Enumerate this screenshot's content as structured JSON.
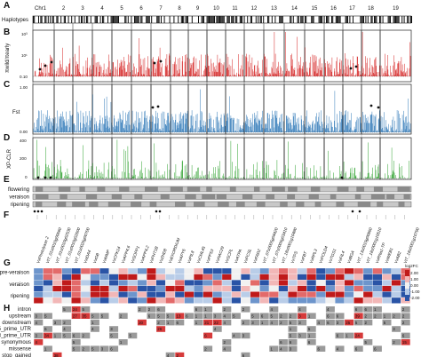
{
  "panels": {
    "a": "A",
    "b": "B",
    "c": "C",
    "d": "D",
    "e": "E",
    "f": "F",
    "g": "G",
    "h": "H"
  },
  "chromosomes": [
    "Chr1",
    "2",
    "3",
    "4",
    "5",
    "6",
    "7",
    "8",
    "9",
    "10",
    "11",
    "12",
    "13",
    "14",
    "15",
    "16",
    "17",
    "18",
    "19"
  ],
  "row_labels": {
    "haplotypes": "Haplotypes",
    "pi": "πwild/πearly",
    "fst": "Fst",
    "xpclr": "XP-CLR"
  },
  "axis_ticks": {
    "pi": {
      "top": "10³",
      "mid": "10¹",
      "bottom": "0.10"
    },
    "fst": {
      "top": "1.00",
      "bottom": "0.00"
    },
    "xpclr": {
      "top": "400",
      "mid": "200",
      "bottom": "0"
    }
  },
  "phenotypes": [
    "flowering",
    "veraison",
    "ripening"
  ],
  "genes": [
    "VvPhotolyase 2",
    "VIT_01s0010g00660",
    "VIT_01s0010g02530",
    "VIT_01s0010g02600",
    "VIT_01s0026g00700",
    "VvIDA4",
    "VvGB",
    "VvMMP",
    "VvCPK14",
    "VvAPP4.6",
    "VvSOPP1",
    "VvAPP4.2",
    "VvPHT1B",
    "VvZHD8",
    "VvEXORDIUM",
    "VvAPY6",
    "VvPIL8",
    "VvCML45",
    "VvPP53",
    "VvNAC29",
    "VvSCPL",
    "VvATPA",
    "VvPCSL",
    "VvFAD2",
    "VIT_07s0005g04420",
    "VIT_07s0005g03410",
    "VIT_18s0001g10480",
    "VvTPS",
    "VvFBT",
    "VvRPL3",
    "VvPOLD4",
    "VvTGS1",
    "VvFIL4",
    "VvBGA",
    "VIT_13s0019g00860",
    "VIT_18s0001g10610",
    "VvRNa1-TP",
    "VvWEB1",
    "VvAB2",
    "VIT_18s0001g10790"
  ],
  "g_rows": [
    "pre-veraison",
    "veraison",
    "ripening"
  ],
  "g_legend": {
    "title": "log2FC",
    "ticks": [
      "2.00",
      "1.00",
      "0.00",
      "-1.00",
      "-2.00"
    ]
  },
  "h_rows": [
    "intron",
    "upstream",
    "downstream",
    "5_prime_UTR",
    "3_prime_UTR",
    "synonymous",
    "missense",
    "stop_gained"
  ]
}
